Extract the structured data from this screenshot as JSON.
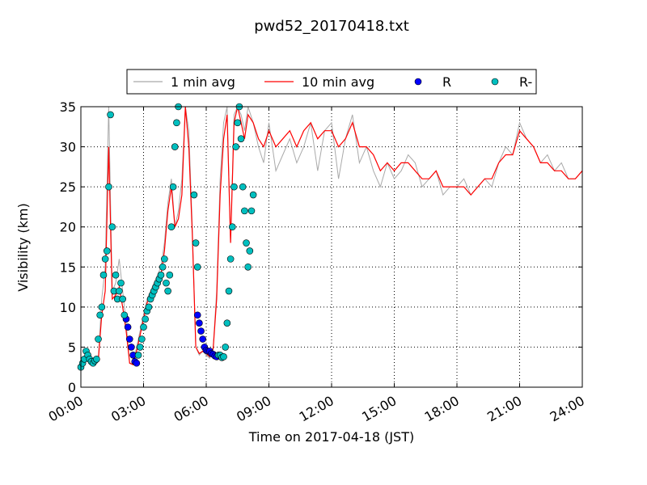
{
  "chart_data": {
    "type": "line",
    "title": "pwd52_20170418.txt",
    "xlabel": "Time on 2017-04-18 (JST)",
    "ylabel": "Visibility (km)",
    "xlim": [
      "00:00",
      "24:00"
    ],
    "ylim": [
      0,
      35
    ],
    "x_ticks": [
      "00:00",
      "03:00",
      "06:00",
      "09:00",
      "12:00",
      "15:00",
      "18:00",
      "21:00",
      "24:00"
    ],
    "y_ticks": [
      "0",
      "5",
      "10",
      "15",
      "20",
      "25",
      "30",
      "35"
    ],
    "grid": true,
    "legend_position": "top-center",
    "legend": [
      {
        "name": "1 min avg",
        "kind": "line",
        "color": "#a9a9a9"
      },
      {
        "name": "10 min avg",
        "kind": "line",
        "color": "#ff0000"
      },
      {
        "name": "R",
        "kind": "marker",
        "color": "#0000ff"
      },
      {
        "name": "R-",
        "kind": "marker",
        "color": "#00bfbf"
      }
    ],
    "series": [
      {
        "name": "1 min avg",
        "color": "#a9a9a9",
        "x": [
          "00:00",
          "00:10",
          "00:20",
          "00:30",
          "00:40",
          "00:50",
          "01:00",
          "01:10",
          "01:20",
          "01:30",
          "01:40",
          "01:50",
          "02:00",
          "02:10",
          "02:20",
          "02:30",
          "02:40",
          "02:50",
          "03:00",
          "03:10",
          "03:20",
          "03:30",
          "03:40",
          "03:50",
          "04:00",
          "04:10",
          "04:20",
          "04:30",
          "04:40",
          "04:50",
          "05:00",
          "05:10",
          "05:20",
          "05:30",
          "05:40",
          "05:50",
          "06:00",
          "06:10",
          "06:20",
          "06:30",
          "06:40",
          "06:50",
          "07:00",
          "07:10",
          "07:20",
          "07:30",
          "07:40",
          "07:50",
          "08:00",
          "08:15",
          "08:30",
          "08:45",
          "09:00",
          "09:20",
          "09:40",
          "10:00",
          "10:20",
          "10:40",
          "11:00",
          "11:20",
          "11:40",
          "12:00",
          "12:20",
          "12:40",
          "13:00",
          "13:20",
          "13:40",
          "14:00",
          "14:20",
          "14:40",
          "15:00",
          "15:20",
          "15:40",
          "16:00",
          "16:20",
          "16:40",
          "17:00",
          "17:20",
          "17:40",
          "18:00",
          "18:20",
          "18:40",
          "19:00",
          "19:20",
          "19:40",
          "20:00",
          "20:20",
          "20:40",
          "21:00",
          "21:20",
          "21:40",
          "22:00",
          "22:20",
          "22:40",
          "23:00",
          "23:20",
          "23:40",
          "24:00"
        ],
        "values": [
          2.5,
          3.5,
          4.5,
          3.5,
          3.2,
          3.5,
          11,
          15,
          35,
          12,
          13,
          16,
          12,
          8,
          3,
          3,
          5,
          7,
          9,
          11,
          12,
          13,
          14,
          15,
          18,
          23,
          26,
          20,
          22,
          26,
          35,
          32,
          20,
          5,
          4,
          4.5,
          4,
          3.6,
          5,
          12,
          26,
          33,
          35,
          18,
          34,
          35,
          34,
          32,
          35,
          33,
          30,
          28,
          33,
          27,
          29,
          31,
          28,
          30,
          33,
          27,
          32,
          33,
          26,
          31,
          34,
          28,
          30,
          27,
          25,
          28,
          26,
          27,
          29,
          28,
          25,
          26,
          27,
          24,
          25,
          25,
          26,
          24,
          25,
          26,
          25,
          28,
          30,
          29,
          33,
          31,
          30,
          28,
          29,
          27,
          28,
          26,
          26,
          27
        ]
      },
      {
        "name": "10 min avg",
        "color": "#ff0000",
        "x": [
          "00:00",
          "00:10",
          "00:20",
          "00:30",
          "00:40",
          "00:50",
          "01:00",
          "01:10",
          "01:20",
          "01:30",
          "01:40",
          "01:50",
          "02:00",
          "02:10",
          "02:20",
          "02:30",
          "02:40",
          "02:50",
          "03:00",
          "03:10",
          "03:20",
          "03:30",
          "03:40",
          "03:50",
          "04:00",
          "04:10",
          "04:20",
          "04:30",
          "04:40",
          "04:50",
          "05:00",
          "05:10",
          "05:20",
          "05:30",
          "05:40",
          "05:50",
          "06:00",
          "06:10",
          "06:20",
          "06:30",
          "06:40",
          "06:50",
          "07:00",
          "07:10",
          "07:20",
          "07:30",
          "07:40",
          "07:50",
          "08:00",
          "08:15",
          "08:30",
          "08:45",
          "09:00",
          "09:20",
          "09:40",
          "10:00",
          "10:20",
          "10:40",
          "11:00",
          "11:20",
          "11:40",
          "12:00",
          "12:20",
          "12:40",
          "13:00",
          "13:20",
          "13:40",
          "14:00",
          "14:20",
          "14:40",
          "15:00",
          "15:20",
          "15:40",
          "16:00",
          "16:20",
          "16:40",
          "17:00",
          "17:20",
          "17:40",
          "18:00",
          "18:20",
          "18:40",
          "19:00",
          "19:20",
          "19:40",
          "20:00",
          "20:20",
          "20:40",
          "21:00",
          "21:20",
          "21:40",
          "22:00",
          "22:20",
          "22:40",
          "23:00",
          "23:20",
          "23:40",
          "24:00"
        ],
        "values": [
          2.5,
          3.2,
          4.0,
          3.4,
          3.1,
          3.3,
          9,
          12,
          30,
          11,
          11.5,
          12.5,
          10,
          7,
          3,
          2.8,
          4.5,
          6.5,
          8.5,
          10.5,
          11.5,
          12.5,
          13.5,
          14,
          17,
          22,
          25,
          20,
          21,
          24,
          35,
          30,
          19,
          5,
          4.2,
          4.5,
          4.2,
          3.8,
          4.8,
          11,
          24,
          31,
          34,
          18,
          33,
          35,
          33,
          31,
          34,
          33,
          31,
          30,
          32,
          30,
          31,
          32,
          30,
          32,
          33,
          31,
          32,
          32,
          30,
          31,
          33,
          30,
          30,
          29,
          27,
          28,
          27,
          28,
          28,
          27,
          26,
          26,
          27,
          25,
          25,
          25,
          25,
          24,
          25,
          26,
          26,
          28,
          29,
          29,
          32,
          31,
          30,
          28,
          28,
          27,
          27,
          26,
          26,
          27
        ]
      },
      {
        "name": "R",
        "color": "#0000ff",
        "x": [
          "02:10",
          "02:15",
          "02:20",
          "02:25",
          "02:30",
          "02:35",
          "02:40",
          "05:35",
          "05:40",
          "05:45",
          "05:50",
          "05:55",
          "06:00",
          "06:05",
          "06:10",
          "06:15",
          "06:20",
          "06:25",
          "06:30"
        ],
        "values": [
          8.5,
          7.5,
          6,
          5,
          4,
          3.2,
          3,
          9,
          8,
          7,
          6,
          5,
          4.6,
          4.5,
          4.5,
          4.2,
          4.1,
          3.9,
          3.8
        ]
      },
      {
        "name": "R-",
        "color": "#00bfbf",
        "x": [
          "00:00",
          "00:05",
          "00:10",
          "00:15",
          "00:20",
          "00:25",
          "00:30",
          "00:35",
          "00:40",
          "00:45",
          "00:50",
          "00:55",
          "01:00",
          "01:05",
          "01:10",
          "01:15",
          "01:20",
          "01:25",
          "01:30",
          "01:35",
          "01:40",
          "01:45",
          "01:50",
          "01:55",
          "02:00",
          "02:05",
          "02:45",
          "02:50",
          "02:55",
          "03:00",
          "03:05",
          "03:10",
          "03:15",
          "03:20",
          "03:25",
          "03:30",
          "03:35",
          "03:40",
          "03:45",
          "03:50",
          "03:55",
          "04:00",
          "04:05",
          "04:10",
          "04:15",
          "04:20",
          "04:25",
          "04:30",
          "04:35",
          "04:40",
          "05:25",
          "05:30",
          "05:35",
          "06:35",
          "06:40",
          "06:45",
          "06:50",
          "06:55",
          "07:00",
          "07:05",
          "07:10",
          "07:15",
          "07:20",
          "07:25",
          "07:30",
          "07:35",
          "07:40",
          "07:45",
          "07:50",
          "07:55",
          "08:00",
          "08:05",
          "08:10",
          "08:15"
        ],
        "values": [
          2.5,
          3,
          3.5,
          4.5,
          4,
          3.5,
          3.2,
          3,
          3.3,
          3.5,
          6,
          9,
          10,
          14,
          16,
          17,
          25,
          34,
          20,
          12,
          14,
          11,
          12,
          13,
          11,
          9,
          4,
          5,
          6,
          7.5,
          8.5,
          9.5,
          10,
          11,
          11.5,
          12,
          12.5,
          13,
          13.5,
          14,
          15,
          16,
          13,
          12,
          14,
          20,
          25,
          30,
          33,
          35,
          24,
          18,
          15,
          4,
          4,
          3.7,
          3.8,
          5,
          8,
          12,
          16,
          20,
          25,
          30,
          33,
          35,
          31,
          25,
          22,
          18,
          15,
          17,
          22,
          24
        ]
      }
    ]
  }
}
